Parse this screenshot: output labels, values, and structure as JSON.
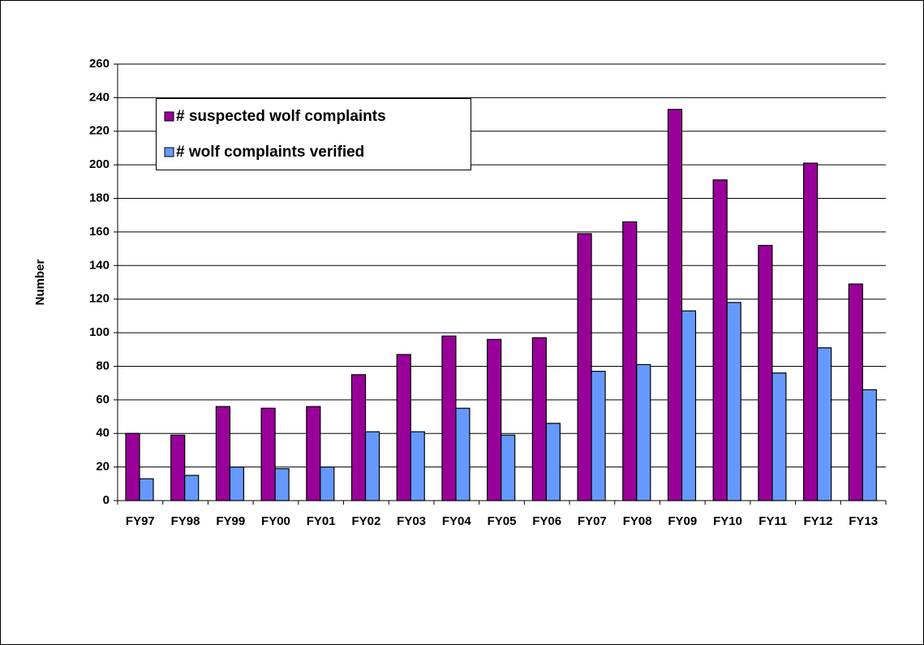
{
  "chart_data": {
    "type": "bar",
    "y_label": "Number",
    "categories": [
      "FY97",
      "FY98",
      "FY99",
      "FY00",
      "FY01",
      "FY02",
      "FY03",
      "FY04",
      "FY05",
      "FY06",
      "FY07",
      "FY08",
      "FY09",
      "FY10",
      "FY11",
      "FY12",
      "FY13"
    ],
    "series": [
      {
        "name": "# suspected wolf complaints",
        "color": "#990099",
        "values": [
          40,
          39,
          56,
          55,
          56,
          75,
          87,
          98,
          96,
          97,
          159,
          166,
          233,
          191,
          152,
          201,
          129
        ]
      },
      {
        "name": "# wolf complaints verified",
        "color": "#6699ff",
        "values": [
          13,
          15,
          20,
          19,
          20,
          41,
          41,
          55,
          39,
          46,
          77,
          81,
          113,
          118,
          76,
          91,
          66
        ]
      }
    ],
    "ylim": [
      0,
      260
    ],
    "yticks": [
      0,
      20,
      40,
      60,
      80,
      100,
      120,
      140,
      160,
      180,
      200,
      220,
      240,
      260
    ],
    "grid": true,
    "legend": "top-left"
  }
}
